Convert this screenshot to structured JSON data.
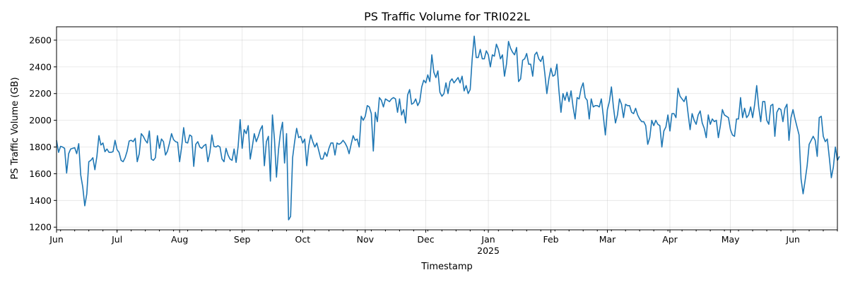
{
  "chart_data": {
    "type": "line",
    "title": "PS Traffic Volume for TRI022L",
    "xlabel": "Timestamp",
    "ylabel": "PS Traffic Volume (GB)",
    "x_range": [
      "2024-06-01",
      "2025-06-23"
    ],
    "ylim": [
      1180,
      2700
    ],
    "y_ticks": [
      1200,
      1400,
      1600,
      1800,
      2000,
      2200,
      2400,
      2600
    ],
    "x_ticks": [
      {
        "date": "2024-06-01",
        "label": "Jun"
      },
      {
        "date": "2024-07-01",
        "label": "Jul"
      },
      {
        "date": "2024-08-01",
        "label": "Aug"
      },
      {
        "date": "2024-09-01",
        "label": "Sep"
      },
      {
        "date": "2024-10-01",
        "label": "Oct"
      },
      {
        "date": "2024-11-01",
        "label": "Nov"
      },
      {
        "date": "2024-12-01",
        "label": "Dec"
      },
      {
        "date": "2025-01-01",
        "label": "Jan",
        "sublabel": "2025"
      },
      {
        "date": "2025-02-01",
        "label": "Feb"
      },
      {
        "date": "2025-03-01",
        "label": "Mar"
      },
      {
        "date": "2025-04-01",
        "label": "Apr"
      },
      {
        "date": "2025-05-01",
        "label": "May"
      },
      {
        "date": "2025-06-01",
        "label": "Jun"
      }
    ],
    "grid": true,
    "series_color": "#1f77b4",
    "series": [
      {
        "start_date": "2024-06-01",
        "interval": "daily",
        "values": [
          1850,
          1760,
          1805,
          1800,
          1790,
          1605,
          1750,
          1785,
          1790,
          1795,
          1750,
          1825,
          1590,
          1500,
          1360,
          1450,
          1690,
          1700,
          1720,
          1630,
          1730,
          1885,
          1815,
          1830,
          1765,
          1785,
          1760,
          1760,
          1765,
          1850,
          1780,
          1760,
          1700,
          1690,
          1720,
          1770,
          1845,
          1850,
          1840,
          1865,
          1690,
          1750,
          1900,
          1880,
          1850,
          1830,
          1920,
          1710,
          1700,
          1720,
          1885,
          1790,
          1860,
          1840,
          1740,
          1770,
          1830,
          1900,
          1855,
          1840,
          1835,
          1690,
          1800,
          1945,
          1835,
          1830,
          1890,
          1880,
          1655,
          1820,
          1840,
          1800,
          1790,
          1810,
          1820,
          1690,
          1760,
          1890,
          1805,
          1800,
          1810,
          1800,
          1710,
          1690,
          1790,
          1740,
          1710,
          1700,
          1785,
          1685,
          1805,
          2005,
          1790,
          1930,
          1900,
          1960,
          1710,
          1800,
          1900,
          1840,
          1880,
          1930,
          1960,
          1660,
          1840,
          1880,
          1545,
          2040,
          1860,
          1575,
          1780,
          1910,
          1985,
          1680,
          1900,
          1255,
          1280,
          1720,
          1840,
          1940,
          1870,
          1880,
          1830,
          1860,
          1660,
          1810,
          1890,
          1840,
          1800,
          1830,
          1770,
          1710,
          1710,
          1760,
          1730,
          1790,
          1830,
          1830,
          1740,
          1830,
          1820,
          1830,
          1850,
          1830,
          1800,
          1750,
          1820,
          1885,
          1850,
          1860,
          1800,
          2030,
          2000,
          2030,
          2110,
          2100,
          2050,
          1770,
          2060,
          1990,
          2170,
          2150,
          2100,
          2160,
          2150,
          2140,
          2160,
          2170,
          2160,
          2060,
          2160,
          2040,
          2080,
          1980,
          2190,
          2230,
          2120,
          2130,
          2160,
          2110,
          2140,
          2250,
          2300,
          2280,
          2340,
          2290,
          2490,
          2360,
          2320,
          2370,
          2210,
          2180,
          2200,
          2280,
          2200,
          2290,
          2310,
          2280,
          2300,
          2320,
          2280,
          2330,
          2220,
          2260,
          2200,
          2230,
          2460,
          2630,
          2470,
          2470,
          2530,
          2460,
          2460,
          2520,
          2490,
          2400,
          2490,
          2480,
          2570,
          2530,
          2460,
          2490,
          2330,
          2420,
          2590,
          2540,
          2510,
          2490,
          2545,
          2290,
          2310,
          2450,
          2460,
          2500,
          2420,
          2420,
          2330,
          2490,
          2510,
          2460,
          2440,
          2480,
          2350,
          2200,
          2310,
          2390,
          2330,
          2340,
          2420,
          2220,
          2060,
          2200,
          2150,
          2210,
          2140,
          2220,
          2100,
          2010,
          2170,
          2160,
          2240,
          2280,
          2170,
          2150,
          2010,
          2160,
          2100,
          2110,
          2110,
          2100,
          2160,
          2030,
          1890,
          2080,
          2140,
          2250,
          2100,
          1980,
          2040,
          2160,
          2120,
          2020,
          2120,
          2110,
          2110,
          2060,
          2050,
          2090,
          2040,
          2010,
          1990,
          1990,
          1960,
          1820,
          1870,
          2000,
          1960,
          2000,
          1970,
          1960,
          1800,
          1920,
          1950,
          2040,
          1920,
          2050,
          2050,
          2020,
          2240,
          2180,
          2160,
          2140,
          2180,
          2050,
          1930,
          2050,
          2000,
          1970,
          2040,
          2070,
          1980,
          1940,
          1870,
          2040,
          1970,
          2010,
          1990,
          2000,
          1870,
          1960,
          2080,
          2040,
          2030,
          2020,
          1930,
          1890,
          1880,
          2010,
          2010,
          2170,
          2020,
          2090,
          2020,
          2040,
          2100,
          2020,
          2120,
          2260,
          2100,
          1990,
          2140,
          2140,
          2000,
          1970,
          2110,
          2120,
          1880,
          2060,
          2090,
          2080,
          1990,
          2090,
          2120,
          1850,
          2020,
          2080,
          2010,
          1950,
          1890,
          1560,
          1450,
          1550,
          1660,
          1820,
          1850,
          1880,
          1850,
          1730,
          2020,
          2030,
          1880,
          1840,
          1860,
          1720,
          1570,
          1650,
          1800,
          1700,
          1730
        ]
      }
    ]
  }
}
